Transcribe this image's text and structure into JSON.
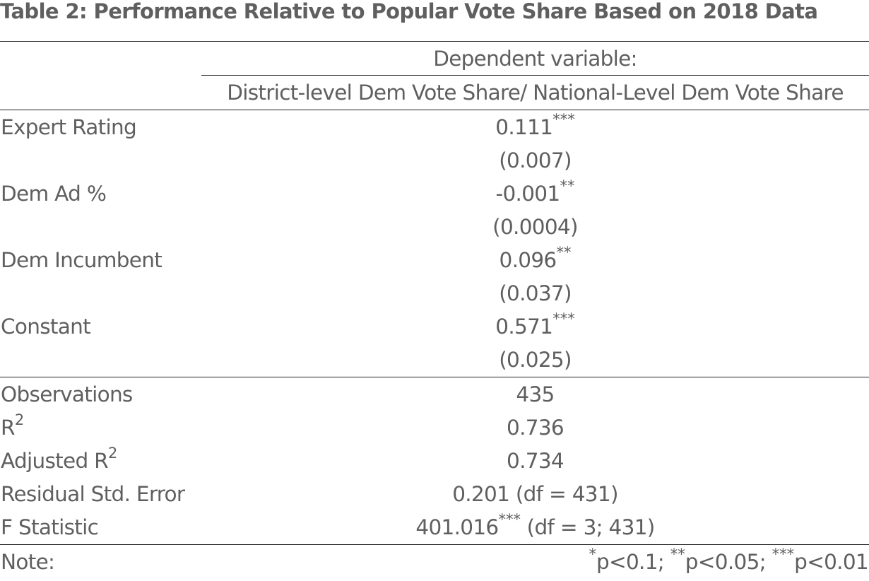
{
  "caption": "Table 2: Performance Relative to Popular Vote Share Based on 2018 Data",
  "header": {
    "dependent_label": "Dependent variable:",
    "dependent_name": "District-level Dem Vote Share/ National-Level Dem Vote Share"
  },
  "coefficients": [
    {
      "label": "Expert Rating",
      "estimate": "0.111",
      "stars": "***",
      "se": "(0.007)"
    },
    {
      "label": "Dem Ad %",
      "estimate": "-0.001",
      "stars": "**",
      "se": "(0.0004)"
    },
    {
      "label": "Dem Incumbent",
      "estimate": "0.096",
      "stars": "**",
      "se": "(0.037)"
    },
    {
      "label": "Constant",
      "estimate": "0.571",
      "stars": "***",
      "se": "(0.025)"
    }
  ],
  "stats": {
    "observations": {
      "label": "Observations",
      "value": "435"
    },
    "r2": {
      "label": "R",
      "sup": "2",
      "value": "0.736"
    },
    "adj_r2": {
      "label": "Adjusted R",
      "sup": "2",
      "value": "0.734"
    },
    "rse": {
      "label": "Residual Std. Error",
      "value": "0.201 (df = 431)"
    },
    "fstat": {
      "label": "F Statistic",
      "value_main": "401.016",
      "stars": "***",
      "value_rest": " (df = 3; 431)"
    }
  },
  "note": {
    "label": "Note:",
    "s1": "*",
    "t1": "p<0.1; ",
    "s2": "**",
    "t2": "p<0.05; ",
    "s3": "***",
    "t3": "p<0.01"
  }
}
